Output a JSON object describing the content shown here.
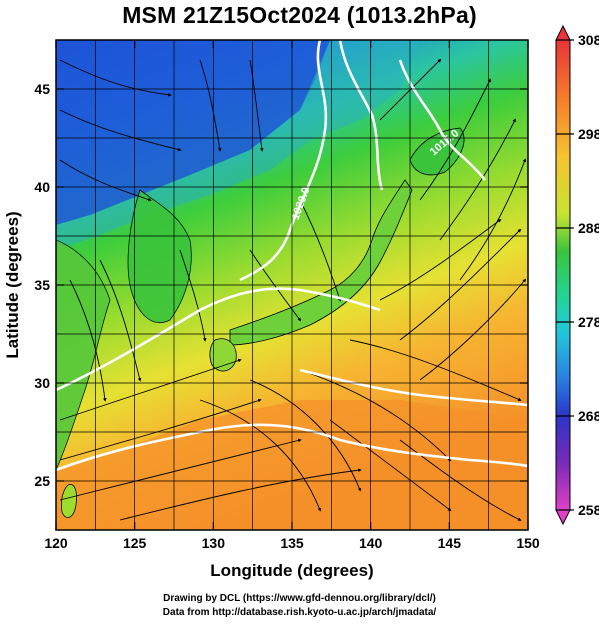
{
  "title": "MSM 21Z15Oct2024 (1013.2hPa)",
  "map": {
    "xlabel": "Longitude (degrees)",
    "ylabel": "Latitude  (degrees)",
    "xlim": [
      120,
      150
    ],
    "ylim": [
      22.5,
      47.5
    ],
    "xticks": [
      120,
      125,
      130,
      135,
      140,
      145,
      150
    ],
    "yticks": [
      25,
      30,
      35,
      40,
      45
    ],
    "grid": true,
    "contour_labels": [
      "1020.0",
      "1015.0"
    ]
  },
  "colorbar": {
    "ticks": [
      "308",
      "298",
      "288",
      "278",
      "268",
      "258"
    ],
    "colors": [
      "#e8343a",
      "#f46a2a",
      "#f79a2a",
      "#f6c431",
      "#e3e533",
      "#9ddc2f",
      "#39c43b",
      "#22d49a",
      "#22c8da",
      "#2a93e6",
      "#2b55d6",
      "#2c22b3",
      "#8b2fb8",
      "#d43bc4"
    ]
  },
  "credits": {
    "line1": "Drawing by DCL (https://www.gfd-dennou.org/library/dcl/)",
    "line2": "Data from http://database.rish.kyoto-u.ac.jp/arch/jmadata/"
  }
}
